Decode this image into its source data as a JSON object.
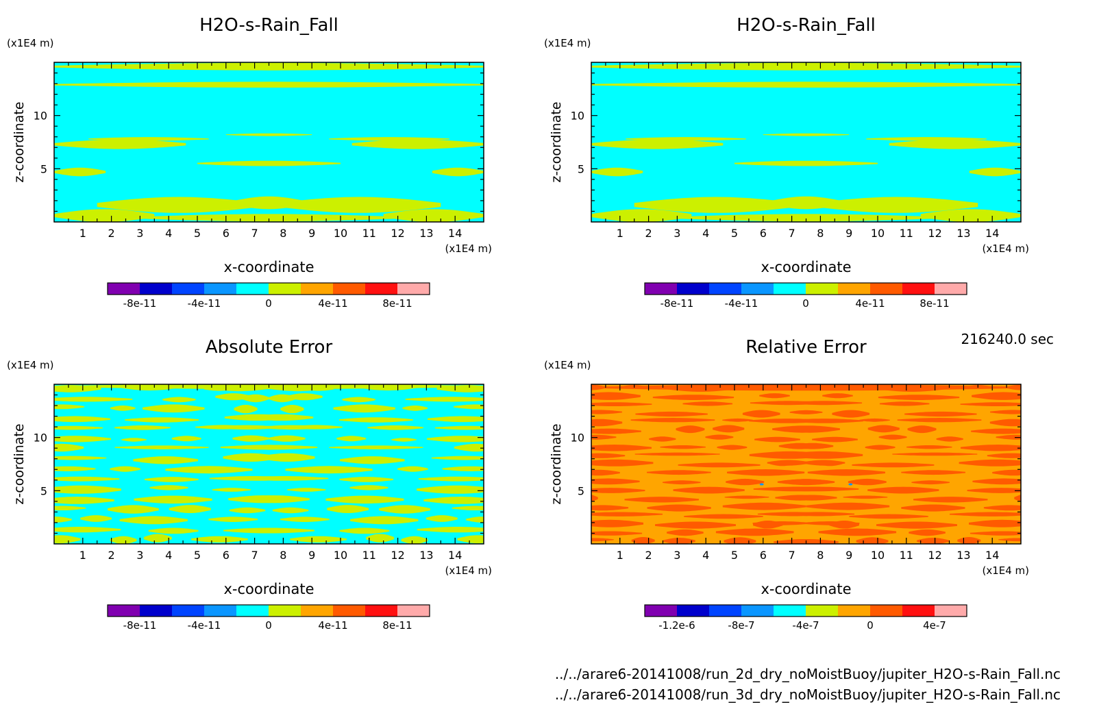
{
  "time_label": "216240.0 sec",
  "footer": {
    "file1": "../../arare6-20141008/run_2d_dry_noMoistBuoy/jupiter_H2O-s-Rain_Fall.nc",
    "file2": "../../arare6-20141008/run_3d_dry_noMoistBuoy/jupiter_H2O-s-Rain_Fall.nc"
  },
  "colors": {
    "lime": "#ccf000",
    "cyan": "#00ffff",
    "orange": "#ffa500",
    "red_orange": "#ff5a00",
    "palette": [
      "#8000b0",
      "#0000cc",
      "#0044ff",
      "#0a96ff",
      "#00ffff",
      "#ccf000",
      "#ffa500",
      "#ff5a00",
      "#ff1010",
      "#ffaaaa"
    ]
  },
  "chart_data": [
    {
      "type": "heatmap",
      "title": "H2O-s-Rain_Fall",
      "xlabel": "x-coordinate",
      "ylabel": "z-coordinate",
      "x_unit": "(x1E4 m)",
      "y_unit": "(x1E4 m)",
      "xlim": [
        0,
        15
      ],
      "ylim": [
        0,
        15
      ],
      "x_ticks": [
        "1",
        "2",
        "3",
        "4",
        "5",
        "6",
        "7",
        "8",
        "9",
        "10",
        "11",
        "12",
        "13",
        "14"
      ],
      "y_ticks": [
        "5",
        "10"
      ],
      "field_pattern": "rain_fall",
      "colorbar_labels": [
        "-8e-11",
        "-4e-11",
        "0",
        "4e-11",
        "8e-11"
      ],
      "colorbar_range": [
        -1e-10,
        1e-10
      ]
    },
    {
      "type": "heatmap",
      "title": "H2O-s-Rain_Fall",
      "xlabel": "x-coordinate",
      "ylabel": "z-coordinate",
      "x_unit": "(x1E4 m)",
      "y_unit": "(x1E4 m)",
      "xlim": [
        0,
        15
      ],
      "ylim": [
        0,
        15
      ],
      "x_ticks": [
        "1",
        "2",
        "3",
        "4",
        "5",
        "6",
        "7",
        "8",
        "9",
        "10",
        "11",
        "12",
        "13",
        "14"
      ],
      "y_ticks": [
        "5",
        "10"
      ],
      "field_pattern": "rain_fall",
      "colorbar_labels": [
        "-8e-11",
        "-4e-11",
        "0",
        "4e-11",
        "8e-11"
      ],
      "colorbar_range": [
        -1e-10,
        1e-10
      ]
    },
    {
      "type": "heatmap",
      "title": "Absolute Error",
      "xlabel": "x-coordinate",
      "ylabel": "z-coordinate",
      "x_unit": "(x1E4 m)",
      "y_unit": "(x1E4 m)",
      "xlim": [
        0,
        15
      ],
      "ylim": [
        0,
        15
      ],
      "x_ticks": [
        "1",
        "2",
        "3",
        "4",
        "5",
        "6",
        "7",
        "8",
        "9",
        "10",
        "11",
        "12",
        "13",
        "14"
      ],
      "y_ticks": [
        "5",
        "10"
      ],
      "field_pattern": "abs_error",
      "colorbar_labels": [
        "-8e-11",
        "-4e-11",
        "0",
        "4e-11",
        "8e-11"
      ],
      "colorbar_range": [
        -1e-10,
        1e-10
      ]
    },
    {
      "type": "heatmap",
      "title": "Relative Error",
      "xlabel": "x-coordinate",
      "ylabel": "z-coordinate",
      "x_unit": "(x1E4 m)",
      "y_unit": "(x1E4 m)",
      "xlim": [
        0,
        15
      ],
      "ylim": [
        0,
        15
      ],
      "x_ticks": [
        "1",
        "2",
        "3",
        "4",
        "5",
        "6",
        "7",
        "8",
        "9",
        "10",
        "11",
        "12",
        "13",
        "14"
      ],
      "y_ticks": [
        "5",
        "10"
      ],
      "field_pattern": "rel_error",
      "colorbar_labels": [
        "-1.2e-6",
        "-8e-7",
        "-4e-7",
        "0",
        "4e-7"
      ],
      "colorbar_range": [
        -1.4e-06,
        6e-07
      ]
    }
  ]
}
